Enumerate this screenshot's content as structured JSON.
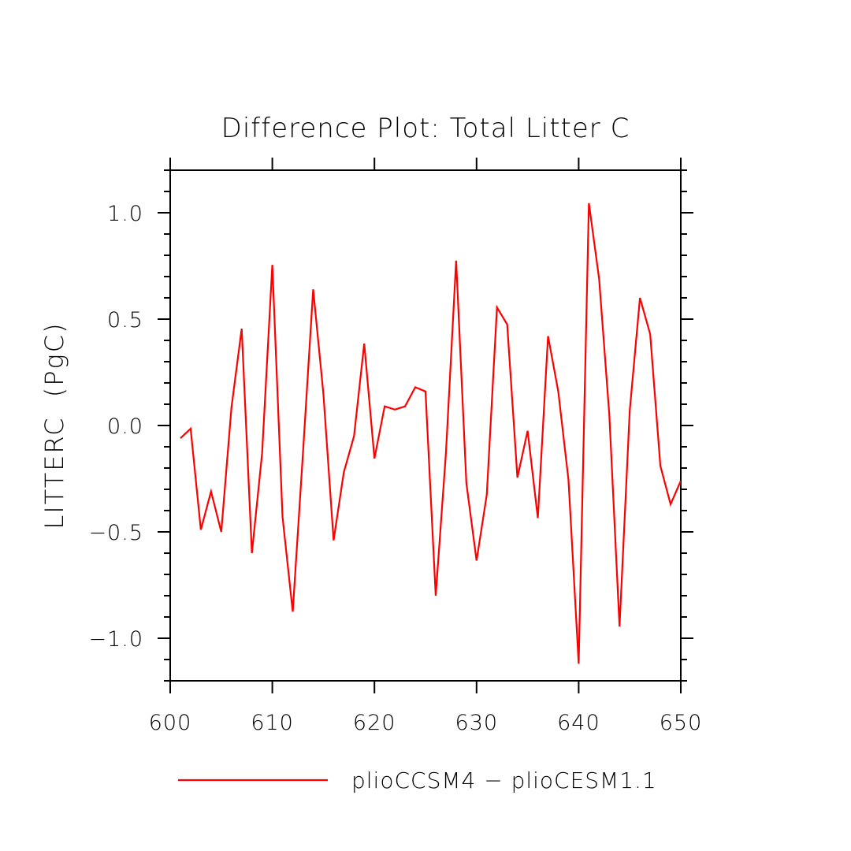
{
  "chart_data": {
    "type": "line",
    "title": "Difference Plot: Total Litter C",
    "ylabel": "LITTERC  (PgC)",
    "xlabel": "",
    "xlim": [
      600,
      650
    ],
    "ylim": [
      -1.2,
      1.2
    ],
    "x_ticks": [
      600,
      610,
      620,
      630,
      640,
      650
    ],
    "x_tick_labels": [
      "600",
      "610",
      "620",
      "630",
      "640",
      "650"
    ],
    "y_ticks": [
      -1.0,
      -0.5,
      0.0,
      0.5,
      1.0
    ],
    "y_tick_labels": [
      "−1.0",
      "−0.5",
      "0.0",
      "0.5",
      "1.0"
    ],
    "legend_placement": "bottom",
    "colors": {
      "series": "#ff0000",
      "axes": "#000000"
    },
    "series": [
      {
        "name": "plioCCSM4 − plioCESM1.1",
        "x": [
          601,
          602,
          603,
          604,
          605,
          606,
          607,
          608,
          609,
          610,
          611,
          612,
          613,
          614,
          615,
          616,
          617,
          618,
          619,
          620,
          621,
          622,
          623,
          624,
          625,
          626,
          627,
          628,
          629,
          630,
          631,
          632,
          633,
          634,
          635,
          636,
          637,
          638,
          639,
          640,
          641,
          642,
          643,
          644,
          645,
          646,
          647,
          648,
          649,
          650
        ],
        "y": [
          -0.06,
          -0.015,
          -0.49,
          -0.31,
          -0.5,
          0.085,
          0.455,
          -0.6,
          -0.13,
          0.755,
          -0.43,
          -0.875,
          -0.13,
          0.64,
          0.15,
          -0.54,
          -0.22,
          -0.05,
          0.385,
          -0.155,
          0.09,
          0.075,
          0.09,
          0.18,
          0.16,
          -0.8,
          -0.13,
          0.775,
          -0.27,
          -0.635,
          -0.325,
          0.555,
          0.475,
          -0.245,
          -0.025,
          -0.435,
          0.42,
          0.16,
          -0.255,
          -1.12,
          1.045,
          0.69,
          0.05,
          -0.945,
          0.07,
          0.6,
          0.43,
          -0.19,
          -0.37,
          -0.26
        ]
      }
    ]
  }
}
